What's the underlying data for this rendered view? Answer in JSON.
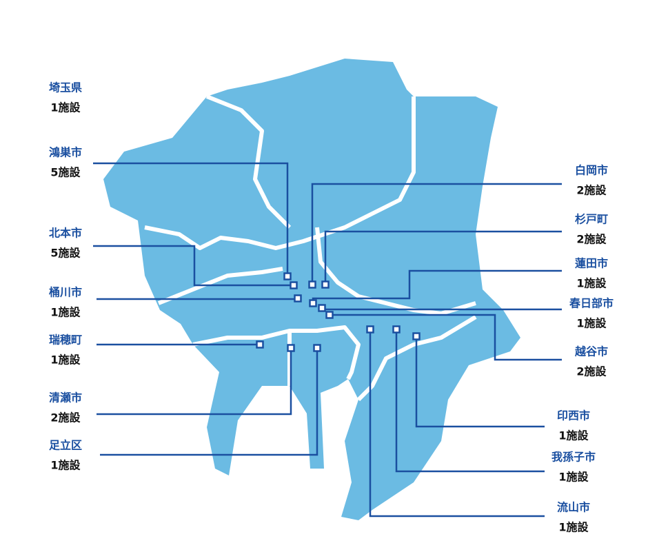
{
  "locations": [
    {
      "name": "埼玉県",
      "count": "1施設"
    },
    {
      "name": "鴻巣市",
      "count": "5施設"
    },
    {
      "name": "北本市",
      "count": "5施設"
    },
    {
      "name": "桶川市",
      "count": "1施設"
    },
    {
      "name": "瑞穂町",
      "count": "1施設"
    },
    {
      "name": "清瀬市",
      "count": "2施設"
    },
    {
      "name": "足立区",
      "count": "1施設"
    },
    {
      "name": "白岡市",
      "count": "2施設"
    },
    {
      "name": "杉戸町",
      "count": "2施設"
    },
    {
      "name": "蓮田市",
      "count": "1施設"
    },
    {
      "name": "春日部市",
      "count": "1施設"
    },
    {
      "name": "越谷市",
      "count": "2施設"
    },
    {
      "name": "印西市",
      "count": "1施設"
    },
    {
      "name": "我孫子市",
      "count": "1施設"
    },
    {
      "name": "流山市",
      "count": "1施設"
    }
  ]
}
